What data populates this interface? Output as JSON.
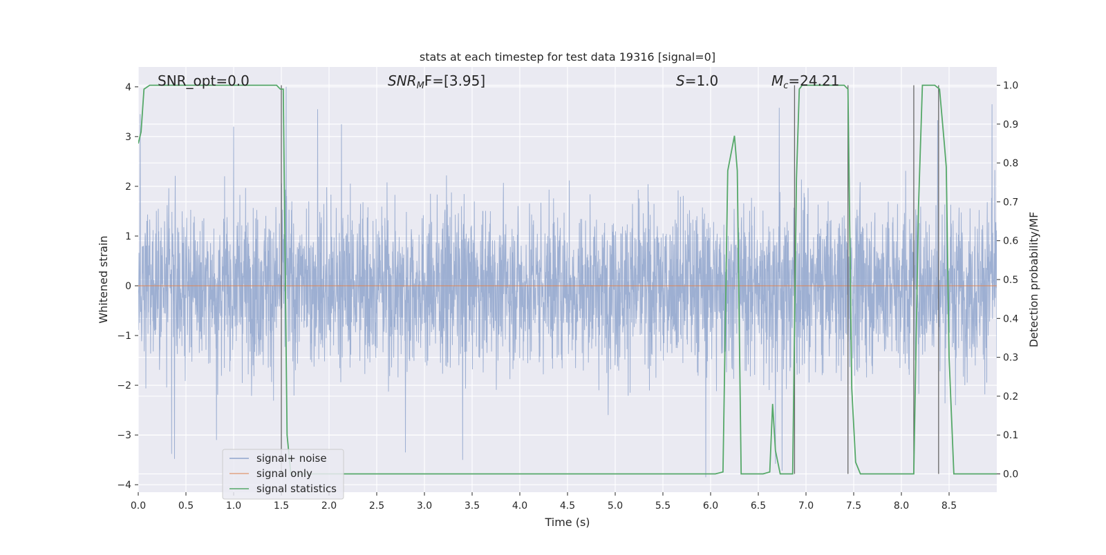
{
  "chart_data": {
    "type": "line",
    "title": "stats at each timestep for test data 19316 [signal=0]",
    "xlabel": "Time (s)",
    "ylabel": "Whitened strain",
    "ylabel_right": "Detection probability/MF",
    "xlim": [
      0.0,
      9.0
    ],
    "ylim": [
      -4.15,
      4.4
    ],
    "ylim_right": [
      -0.047,
      1.047
    ],
    "x_ticks": [
      "0.0",
      "0.5",
      "1.0",
      "1.5",
      "2.0",
      "2.5",
      "3.0",
      "3.5",
      "4.0",
      "4.5",
      "5.0",
      "5.5",
      "6.0",
      "6.5",
      "7.0",
      "7.5",
      "8.0",
      "8.5"
    ],
    "y_ticks": [
      "−4",
      "−3",
      "−2",
      "−1",
      "0",
      "1",
      "2",
      "3",
      "4"
    ],
    "y_ticks_right": [
      "0.0",
      "0.1",
      "0.2",
      "0.3",
      "0.4",
      "0.5",
      "0.6",
      "0.7",
      "0.8",
      "0.9",
      "1.0"
    ],
    "grid": true,
    "legend_position": "lower-left",
    "annotations": {
      "snr_opt": "SNR_opt=0.0",
      "snr_mf_main": "SNR",
      "snr_mf_sub": "M",
      "snr_mf_rest": "F=[3.95]",
      "s_italic": "S",
      "s_rest": "=1.0",
      "mc_italic": "M",
      "mc_sub": "c",
      "mc_rest": "=24.21"
    },
    "series": [
      {
        "name": "signal+ noise",
        "axis": "left",
        "color": "#8fa4cc",
        "style": "dense noise, roughly between -2.2 and 2.5 with spikes to about ±3.5 and a max near 4.0",
        "spike_peaks": [
          [
            0.02,
            3.45
          ],
          [
            1.55,
            4.0
          ],
          [
            1.88,
            3.55
          ],
          [
            2.13,
            3.25
          ],
          [
            1.0,
            3.2
          ],
          [
            6.72,
            3.58
          ],
          [
            8.38,
            3.33
          ],
          [
            8.95,
            3.65
          ]
        ],
        "spike_troughs": [
          [
            0.35,
            -3.38
          ],
          [
            0.38,
            -3.48
          ],
          [
            0.82,
            -3.1
          ],
          [
            2.8,
            -3.35
          ],
          [
            3.4,
            -3.5
          ],
          [
            5.95,
            -3.85
          ],
          [
            6.68,
            -3.58
          ],
          [
            6.75,
            -3.72
          ]
        ]
      },
      {
        "name": "signal only",
        "axis": "left",
        "color": "#dd8452",
        "x": [
          0.0,
          9.0
        ],
        "y": [
          0.0,
          0.0
        ]
      },
      {
        "name": "signal statistics",
        "axis": "right",
        "color": "#55a868",
        "x": [
          0.0,
          0.03,
          0.06,
          0.12,
          1.45,
          1.49,
          1.52,
          1.56,
          1.6,
          6.05,
          6.13,
          6.18,
          6.25,
          6.28,
          6.32,
          6.55,
          6.62,
          6.65,
          6.68,
          6.73,
          6.86,
          6.9,
          6.93,
          6.96,
          7.4,
          7.44,
          7.48,
          7.52,
          7.57,
          8.13,
          8.18,
          8.22,
          8.35,
          8.4,
          8.45,
          8.47,
          8.5,
          8.55,
          9.0
        ],
        "y": [
          0.85,
          0.88,
          0.99,
          1.0,
          1.0,
          0.99,
          0.99,
          0.1,
          0.0,
          0.0,
          0.005,
          0.78,
          0.87,
          0.78,
          0.0,
          0.0,
          0.005,
          0.18,
          0.06,
          0.0,
          0.0,
          0.76,
          0.99,
          1.0,
          1.0,
          0.99,
          0.22,
          0.03,
          0.0,
          0.0,
          0.69,
          1.0,
          1.0,
          0.99,
          0.85,
          0.79,
          0.3,
          0.0,
          0.0
        ]
      }
    ],
    "vertical_lines": {
      "color": "#666666",
      "x": [
        1.5,
        6.88,
        7.44,
        8.13,
        8.39
      ]
    }
  }
}
